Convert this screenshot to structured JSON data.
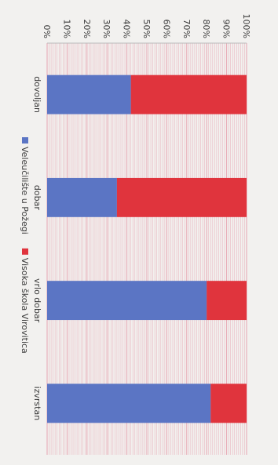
{
  "chart_data": {
    "type": "bar",
    "stacked": true,
    "normalized": true,
    "orientation": "vertical",
    "image_rotation_deg": 90,
    "categories": [
      "dovoljan",
      "dobar",
      "vrlo dobar",
      "izvrstan"
    ],
    "series": [
      {
        "name": "Veleučilište u Požegi",
        "values": [
          42,
          35,
          80,
          82
        ]
      },
      {
        "name": "Visoka škola Virovitica",
        "values": [
          58,
          65,
          20,
          18
        ]
      }
    ],
    "y_ticks": [
      "0%",
      "10%",
      "20%",
      "30%",
      "40%",
      "50%",
      "60%",
      "70%",
      "80%",
      "90%",
      "100%"
    ],
    "ylim": [
      0,
      100
    ],
    "title": "",
    "xlabel": "",
    "ylabel": "",
    "grid": true,
    "legend_position": "top",
    "colors": {
      "Veleučilište u Požegi": "#5b75c4",
      "Visoka škola Virovitica": "#e0343d",
      "grid": "#e7a2b0",
      "background": "#f2f1ef"
    }
  }
}
